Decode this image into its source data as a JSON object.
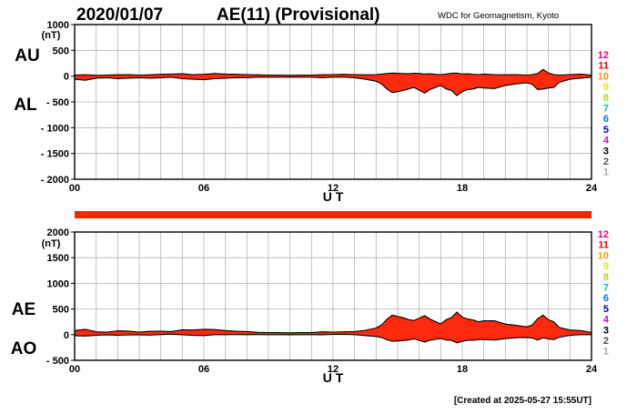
{
  "header": {
    "date": "2020/01/07",
    "title": "AE(11) (Provisional)",
    "source": "WDC for Geomagnetism, Kyoto"
  },
  "footer": {
    "created": "[Created at 2025-05-27 15:55UT]"
  },
  "colors": {
    "fill": "#ff2a0d",
    "stripe": "#ee2a00",
    "grid": "#b4b4b4"
  },
  "station_count_legend": [
    {
      "label": "12",
      "color": "#ff0080"
    },
    {
      "label": "11",
      "color": "#ff0000"
    },
    {
      "label": "10",
      "color": "#ff9900"
    },
    {
      "label": "9",
      "color": "#e8e800"
    },
    {
      "label": "8",
      "color": "#a0e000"
    },
    {
      "label": "7",
      "color": "#00c8c8"
    },
    {
      "label": "6",
      "color": "#0070ff"
    },
    {
      "label": "5",
      "color": "#0000c8"
    },
    {
      "label": "4",
      "color": "#e000e0"
    },
    {
      "label": "3",
      "color": "#000000"
    },
    {
      "label": "2",
      "color": "#555555"
    },
    {
      "label": "1",
      "color": "#aaaaaa"
    }
  ],
  "chart_data": [
    {
      "type": "area",
      "name": "au-al",
      "top_labels": [
        "AU",
        "AL"
      ],
      "unit": "(nT)",
      "xlabel": "U T",
      "x_ticks": [
        0,
        6,
        12,
        18,
        24
      ],
      "x_tick_labels": [
        "00",
        "06",
        "12",
        "18",
        "24"
      ],
      "xlim": [
        0,
        24
      ],
      "ylim": [
        -2000,
        1000
      ],
      "y_ticks": [
        1000,
        500,
        0,
        -500,
        -1000,
        -1500,
        -2000
      ],
      "y_tick_labels": [
        "1000",
        "500",
        "0",
        "- 500",
        "- 1000",
        "- 1500",
        "- 2000"
      ],
      "grid": true,
      "x": [
        0,
        0.5,
        1,
        1.5,
        2,
        2.5,
        3,
        3.5,
        4,
        4.5,
        5,
        5.5,
        6,
        6.5,
        7,
        7.5,
        8,
        8.5,
        9,
        9.5,
        10,
        10.5,
        11,
        11.5,
        12,
        12.5,
        13,
        13.5,
        14,
        14.25,
        14.5,
        14.75,
        15,
        15.25,
        15.5,
        15.75,
        16,
        16.25,
        16.5,
        16.75,
        17,
        17.25,
        17.5,
        17.75,
        18,
        18.25,
        18.5,
        18.75,
        19,
        19.5,
        20,
        20.5,
        21,
        21.25,
        21.5,
        21.75,
        22,
        22.25,
        22.5,
        23,
        23.5,
        24
      ],
      "series": [
        {
          "name": "AU",
          "values": [
            20,
            25,
            15,
            20,
            25,
            30,
            20,
            25,
            35,
            40,
            45,
            30,
            35,
            50,
            40,
            35,
            30,
            25,
            20,
            20,
            15,
            20,
            20,
            25,
            30,
            35,
            30,
            25,
            30,
            40,
            50,
            60,
            55,
            50,
            45,
            55,
            50,
            40,
            45,
            35,
            30,
            40,
            55,
            60,
            40,
            45,
            35,
            30,
            40,
            30,
            25,
            30,
            20,
            30,
            50,
            130,
            60,
            30,
            20,
            30,
            40,
            20
          ]
        },
        {
          "name": "AL",
          "values": [
            -60,
            -80,
            -40,
            -30,
            -50,
            -40,
            -30,
            -40,
            -30,
            -20,
            -50,
            -60,
            -70,
            -50,
            -40,
            -30,
            -30,
            -20,
            -20,
            -20,
            -20,
            -20,
            -20,
            -30,
            -20,
            -20,
            -30,
            -60,
            -100,
            -150,
            -250,
            -320,
            -300,
            -280,
            -250,
            -220,
            -270,
            -330,
            -260,
            -220,
            -180,
            -250,
            -280,
            -380,
            -300,
            -260,
            -250,
            -220,
            -230,
            -240,
            -180,
            -150,
            -130,
            -160,
            -260,
            -250,
            -230,
            -220,
            -120,
            -60,
            -40,
            -20
          ]
        }
      ]
    },
    {
      "type": "area",
      "name": "ae-ao",
      "top_labels": [
        "AE",
        "AO"
      ],
      "unit": "(nT)",
      "xlabel": "U T",
      "x_ticks": [
        0,
        6,
        12,
        18,
        24
      ],
      "x_tick_labels": [
        "00",
        "06",
        "12",
        "18",
        "24"
      ],
      "xlim": [
        0,
        24
      ],
      "ylim": [
        -500,
        2000
      ],
      "y_ticks": [
        2000,
        1500,
        1000,
        500,
        0,
        -500
      ],
      "y_tick_labels": [
        "2000",
        "1500",
        "1000",
        "500",
        "0",
        "- 500"
      ],
      "grid": true,
      "x": [
        0,
        0.5,
        1,
        1.5,
        2,
        2.5,
        3,
        3.5,
        4,
        4.5,
        5,
        5.5,
        6,
        6.5,
        7,
        7.5,
        8,
        8.5,
        9,
        9.5,
        10,
        10.5,
        11,
        11.5,
        12,
        12.5,
        13,
        13.5,
        14,
        14.25,
        14.5,
        14.75,
        15,
        15.25,
        15.5,
        15.75,
        16,
        16.25,
        16.5,
        16.75,
        17,
        17.25,
        17.5,
        17.75,
        18,
        18.25,
        18.5,
        18.75,
        19,
        19.5,
        20,
        20.5,
        21,
        21.25,
        21.5,
        21.75,
        22,
        22.25,
        22.5,
        23,
        23.5,
        24
      ],
      "series": [
        {
          "name": "AE",
          "values": [
            80,
            105,
            55,
            50,
            75,
            70,
            50,
            65,
            65,
            60,
            95,
            90,
            105,
            100,
            80,
            65,
            60,
            45,
            40,
            40,
            35,
            40,
            40,
            55,
            50,
            55,
            60,
            85,
            130,
            190,
            300,
            380,
            355,
            330,
            295,
            275,
            320,
            370,
            305,
            255,
            210,
            290,
            335,
            440,
            340,
            305,
            285,
            250,
            270,
            270,
            205,
            180,
            150,
            190,
            310,
            380,
            290,
            250,
            140,
            90,
            80,
            40
          ]
        },
        {
          "name": "AO",
          "values": [
            -20,
            -27,
            -12,
            -5,
            -12,
            -5,
            -5,
            -8,
            2,
            10,
            -2,
            -15,
            -17,
            0,
            0,
            2,
            0,
            2,
            0,
            0,
            -2,
            0,
            0,
            -2,
            5,
            7,
            0,
            -17,
            -35,
            -55,
            -100,
            -130,
            -122,
            -115,
            -102,
            -82,
            -110,
            -145,
            -108,
            -92,
            -75,
            -105,
            -112,
            -160,
            -130,
            -108,
            -108,
            -95,
            -95,
            -105,
            -78,
            -60,
            -55,
            -65,
            -105,
            -60,
            -85,
            -95,
            -50,
            -15,
            0,
            0
          ]
        }
      ]
    }
  ]
}
